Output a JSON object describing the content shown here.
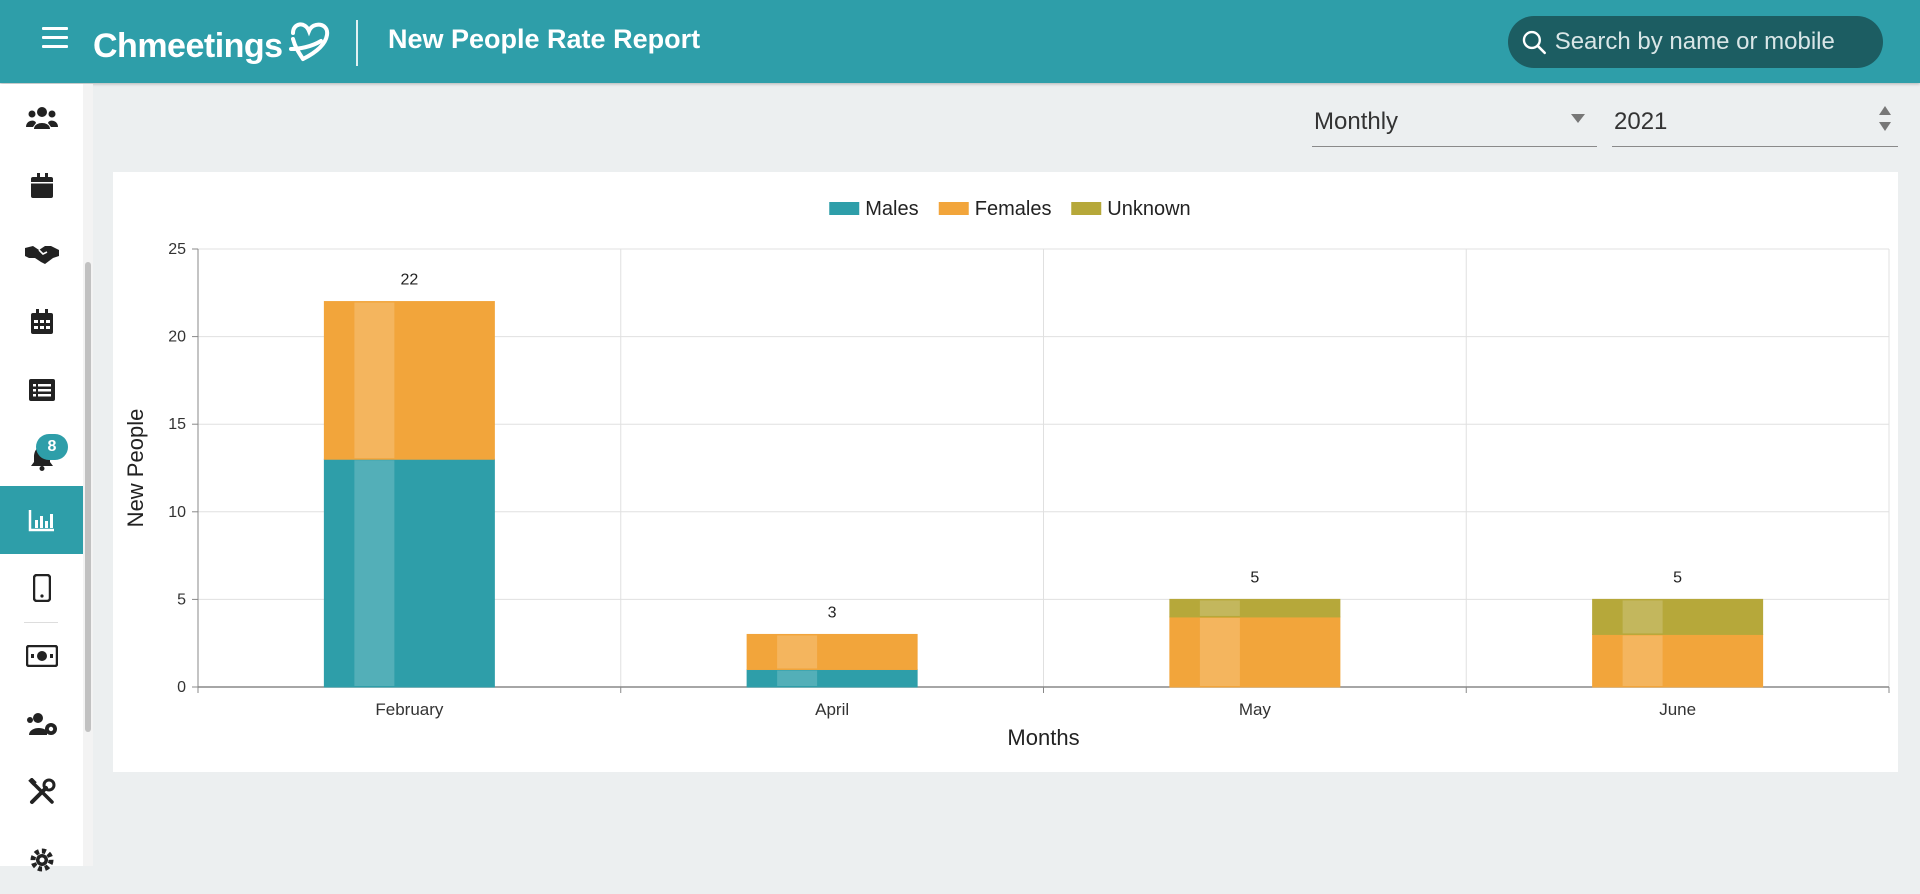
{
  "app": {
    "logo_text": "Chmeetings",
    "page_title": "New People Rate Report"
  },
  "search": {
    "placeholder": "Search by name or mobile"
  },
  "sidebar": {
    "items": [
      {
        "icon": "people-group-icon"
      },
      {
        "icon": "calendar-icon"
      },
      {
        "icon": "handshake-icon"
      },
      {
        "icon": "calendar-grid-icon"
      },
      {
        "icon": "list-icon"
      },
      {
        "icon": "bell-icon",
        "badge": "8"
      },
      {
        "icon": "bar-chart-icon",
        "active": true
      },
      {
        "icon": "mobile-icon"
      },
      {
        "icon": "money-icon"
      },
      {
        "icon": "people-gear-icon"
      },
      {
        "icon": "tools-icon"
      },
      {
        "icon": "gear-icon"
      }
    ]
  },
  "filters": {
    "period": "Monthly",
    "year": "2021"
  },
  "chart_data": {
    "type": "bar",
    "stacked": true,
    "categories": [
      "February",
      "April",
      "May",
      "June"
    ],
    "series": [
      {
        "name": "Males",
        "values": [
          13,
          1,
          0,
          0
        ],
        "color": "#2e9ea9"
      },
      {
        "name": "Females",
        "values": [
          9,
          2,
          4,
          3
        ],
        "color": "#f2a53b"
      },
      {
        "name": "Unknown",
        "values": [
          0,
          0,
          1,
          2
        ],
        "color": "#b6a83a"
      }
    ],
    "totals": [
      "22",
      "3",
      "5",
      "5"
    ],
    "ylim": [
      0,
      25
    ],
    "yticks": [
      "0",
      "5",
      "10",
      "15",
      "20",
      "25"
    ],
    "xlabel": "Months",
    "ylabel": "New People",
    "legend_position": "top-center",
    "grid": true
  }
}
